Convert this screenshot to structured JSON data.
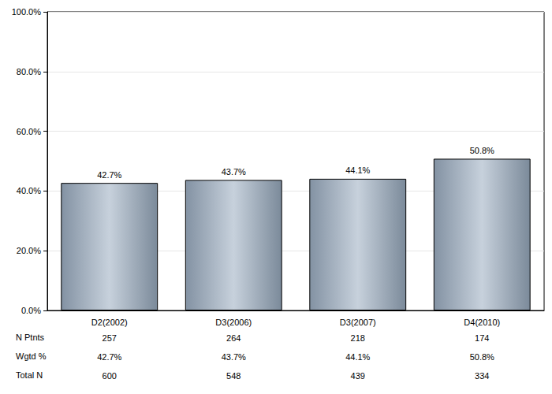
{
  "chart_data": {
    "type": "bar",
    "categories": [
      "D2(2002)",
      "D3(2006)",
      "D3(2007)",
      "D4(2010)"
    ],
    "values": [
      42.7,
      43.7,
      44.1,
      50.8
    ],
    "value_labels": [
      "42.7%",
      "43.7%",
      "44.1%",
      "50.8%"
    ],
    "data_labels": true,
    "color": "#9aacc0",
    "ylim": [
      0,
      100
    ],
    "yticks": [
      {
        "value": 0,
        "label": "0.0%"
      },
      {
        "value": 20,
        "label": "20.0%"
      },
      {
        "value": 40,
        "label": "40.0%"
      },
      {
        "value": 60,
        "label": "60.0%"
      },
      {
        "value": 80,
        "label": "80.0%"
      },
      {
        "value": 100,
        "label": "100.0%"
      }
    ],
    "grid": true,
    "table": {
      "rows": [
        {
          "label": "N Ptnts",
          "values": [
            257,
            264,
            218,
            174
          ]
        },
        {
          "label": "Wgtd %",
          "values": [
            42.7,
            43.7,
            44.1,
            50.8
          ],
          "value_labels": [
            "42.7%",
            "43.7%",
            "44.1%",
            "50.8%"
          ]
        },
        {
          "label": "Total N",
          "values": [
            600,
            548,
            439,
            334
          ]
        }
      ]
    }
  }
}
